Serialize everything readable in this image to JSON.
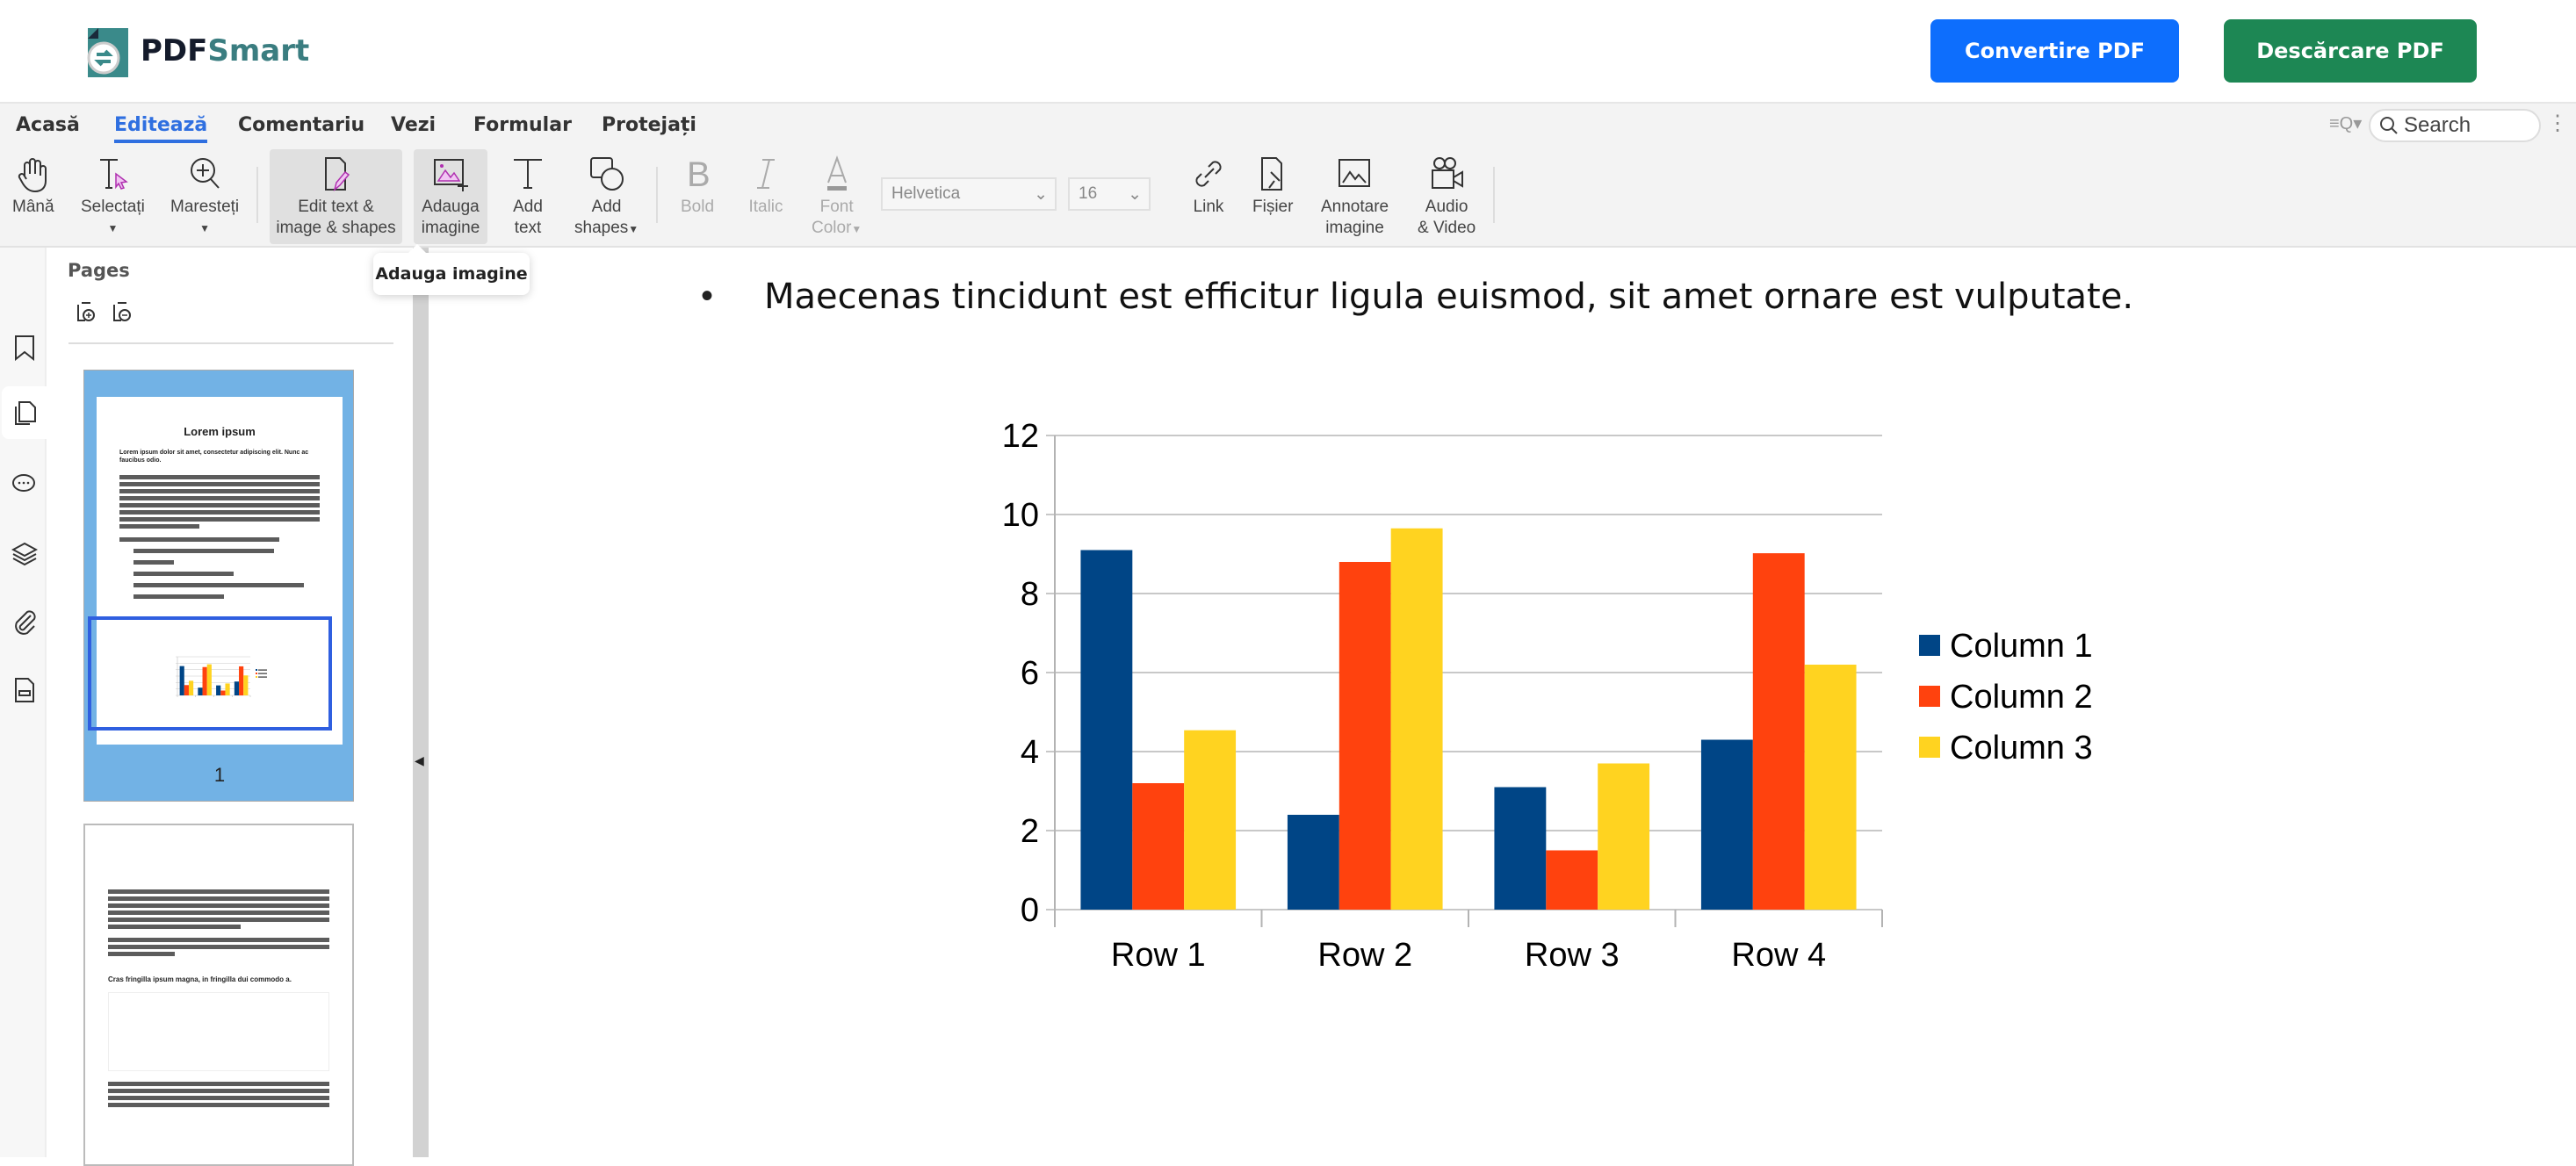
{
  "header": {
    "logo_text_a": "PDF",
    "logo_text_b": "Smart",
    "convert_button": "Convertire PDF",
    "download_button": "Descărcare PDF",
    "colors": {
      "convert": "#0d6efd",
      "download": "#1d8754",
      "logo_teal": "#3a8a8a"
    }
  },
  "menu": {
    "tabs": [
      {
        "label": "Acasă"
      },
      {
        "label": "Editează",
        "active": true
      },
      {
        "label": "Comentariu"
      },
      {
        "label": "Vezi"
      },
      {
        "label": "Formular"
      },
      {
        "label": "Protejați"
      }
    ],
    "search_placeholder": "Search"
  },
  "toolbar": {
    "hand": "Mână",
    "select": "Selectați",
    "zoom": "Maresteți",
    "edit_line1": "Edit text &",
    "edit_line2": "image & shapes",
    "add_image_line1": "Adauga",
    "add_image_line2": "imagine",
    "add_text_line1": "Add",
    "add_text_line2": "text",
    "add_shapes_line1": "Add",
    "add_shapes_line2": "shapes",
    "bold": "Bold",
    "italic": "Italic",
    "font_color_line1": "Font",
    "font_color_line2": "Color",
    "font_family": "Helvetica",
    "font_size": "16",
    "link": "Link",
    "file": "Fișier",
    "annot_line1": "Annotare",
    "annot_line2": "imagine",
    "audio_line1": "Audio",
    "audio_line2": "& Video"
  },
  "tooltip": "Adauga imagine",
  "pages_panel": {
    "title": "Pages",
    "thumb1": {
      "heading": "Lorem ipsum",
      "subheading": "Lorem ipsum dolor sit amet, consectetur adipiscing elit. Nunc ac faucibus odio.",
      "page_number": "1"
    },
    "thumb2": {
      "heading": "Cras fringilla ipsum magna, in fringilla dui commodo a."
    }
  },
  "document": {
    "bullet_text": "Maecenas tincidunt est efficitur ligula euismod, sit amet ornare est vulputate."
  },
  "chart_data": {
    "type": "bar",
    "categories": [
      "Row 1",
      "Row 2",
      "Row 3",
      "Row 4"
    ],
    "series": [
      {
        "name": "Column 1",
        "values": [
          9.1,
          2.4,
          3.1,
          4.3
        ],
        "color": "#004586"
      },
      {
        "name": "Column 2",
        "values": [
          3.2,
          8.8,
          1.5,
          9.02
        ],
        "color": "#ff420e"
      },
      {
        "name": "Column 3",
        "values": [
          4.54,
          9.65,
          3.7,
          6.2
        ],
        "color": "#ffd320"
      }
    ],
    "ylim": [
      0,
      12
    ],
    "yticks": [
      "0",
      "2",
      "4",
      "6",
      "8",
      "10",
      "12"
    ],
    "grid": true,
    "legend": "right"
  }
}
